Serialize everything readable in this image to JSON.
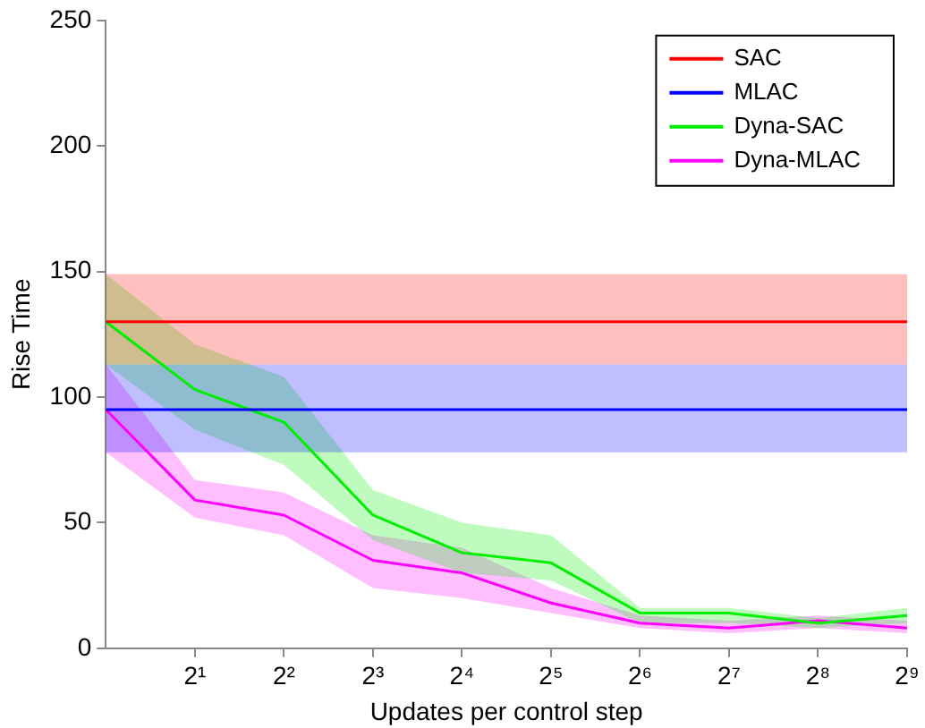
{
  "chart_data": {
    "type": "line",
    "xlabel": "Updates per control step",
    "ylabel": "Rise Time",
    "log": "x",
    "xlim": [
      1,
      512
    ],
    "xticks": [
      {
        "value": 2,
        "label": "2¹"
      },
      {
        "value": 4,
        "label": "2²"
      },
      {
        "value": 8,
        "label": "2³"
      },
      {
        "value": 16,
        "label": "2⁴"
      },
      {
        "value": 32,
        "label": "2⁵"
      },
      {
        "value": 64,
        "label": "2⁶"
      },
      {
        "value": 128,
        "label": "2⁷"
      },
      {
        "value": 256,
        "label": "2⁸"
      },
      {
        "value": 512,
        "label": "2⁹"
      }
    ],
    "ylim": [
      0,
      250
    ],
    "yticks": [
      0,
      50,
      100,
      150,
      200,
      250
    ],
    "legend": "top right",
    "line_style": "solid",
    "marker": "none",
    "series": [
      {
        "name": "SAC",
        "color": "#ff0000",
        "x": [
          1,
          512
        ],
        "values": [
          130,
          130
        ],
        "lower": [
          113,
          113
        ],
        "upper": [
          149,
          149
        ]
      },
      {
        "name": "MLAC",
        "color": "#0000ff",
        "x": [
          1,
          512
        ],
        "values": [
          95,
          95
        ],
        "lower": [
          78,
          78
        ],
        "upper": [
          113,
          113
        ]
      },
      {
        "name": "Dyna-SAC",
        "color": "#00ee00",
        "x": [
          1,
          2,
          4,
          8,
          16,
          32,
          64,
          128,
          256,
          512
        ],
        "values": [
          130,
          103,
          90,
          53,
          38,
          34,
          14,
          14,
          10,
          13
        ],
        "lower": [
          113,
          87,
          73,
          43,
          30,
          27,
          10,
          10,
          8,
          10
        ],
        "upper": [
          149,
          121,
          108,
          63,
          50,
          45,
          16,
          16,
          12,
          16
        ]
      },
      {
        "name": "Dyna-MLAC",
        "color": "#ff00ff",
        "x": [
          1,
          2,
          4,
          8,
          16,
          32,
          64,
          128,
          256,
          512
        ],
        "values": [
          95,
          59,
          53,
          35,
          30,
          18,
          10,
          8,
          11,
          8
        ],
        "lower": [
          78,
          52,
          45,
          24,
          20,
          14,
          8,
          6,
          8,
          6
        ],
        "upper": [
          113,
          67,
          62,
          45,
          40,
          24,
          13,
          11,
          13,
          11
        ]
      }
    ]
  }
}
